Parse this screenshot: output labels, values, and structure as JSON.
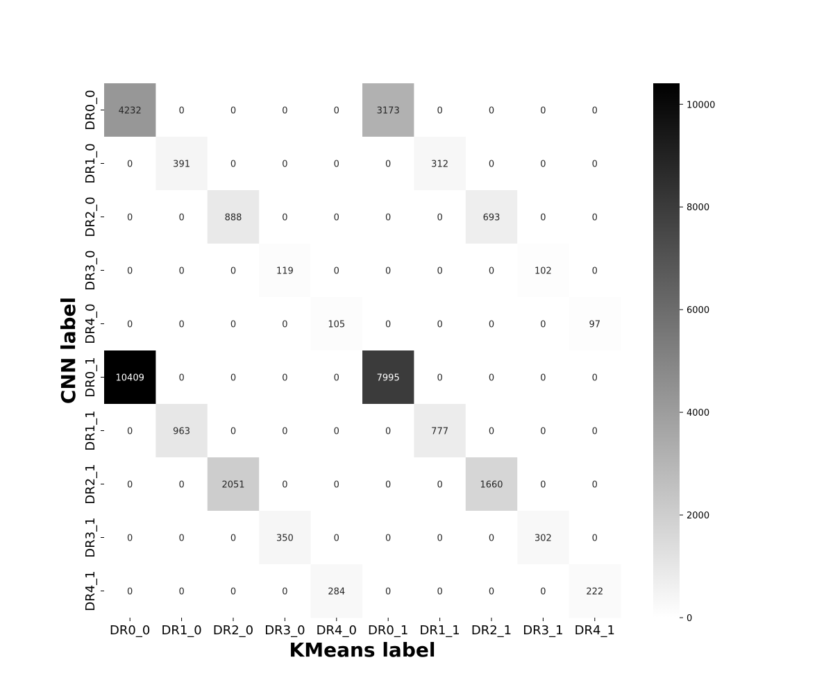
{
  "chart_data": {
    "type": "heatmap",
    "title": "",
    "xlabel": "KMeans label",
    "ylabel": "CNN label",
    "x_categories": [
      "DR0_0",
      "DR1_0",
      "DR2_0",
      "DR3_0",
      "DR4_0",
      "DR0_1",
      "DR1_1",
      "DR2_1",
      "DR3_1",
      "DR4_1"
    ],
    "y_categories": [
      "DR0_0",
      "DR1_0",
      "DR2_0",
      "DR3_0",
      "DR4_0",
      "DR0_1",
      "DR1_1",
      "DR2_1",
      "DR3_1",
      "DR4_1"
    ],
    "values": [
      [
        4232,
        0,
        0,
        0,
        0,
        3173,
        0,
        0,
        0,
        0
      ],
      [
        0,
        391,
        0,
        0,
        0,
        0,
        312,
        0,
        0,
        0
      ],
      [
        0,
        0,
        888,
        0,
        0,
        0,
        0,
        693,
        0,
        0
      ],
      [
        0,
        0,
        0,
        119,
        0,
        0,
        0,
        0,
        102,
        0
      ],
      [
        0,
        0,
        0,
        0,
        105,
        0,
        0,
        0,
        0,
        97
      ],
      [
        10409,
        0,
        0,
        0,
        0,
        7995,
        0,
        0,
        0,
        0
      ],
      [
        0,
        963,
        0,
        0,
        0,
        0,
        777,
        0,
        0,
        0
      ],
      [
        0,
        0,
        2051,
        0,
        0,
        0,
        0,
        1660,
        0,
        0
      ],
      [
        0,
        0,
        0,
        350,
        0,
        0,
        0,
        0,
        302,
        0
      ],
      [
        0,
        0,
        0,
        0,
        284,
        0,
        0,
        0,
        0,
        222
      ]
    ],
    "colormap": "Greys",
    "colorbar": {
      "range": [
        0,
        10409
      ],
      "ticks": [
        0,
        2000,
        4000,
        6000,
        8000,
        10000
      ]
    },
    "colors": {
      "low": "#ffffff",
      "high": "#000000"
    }
  }
}
